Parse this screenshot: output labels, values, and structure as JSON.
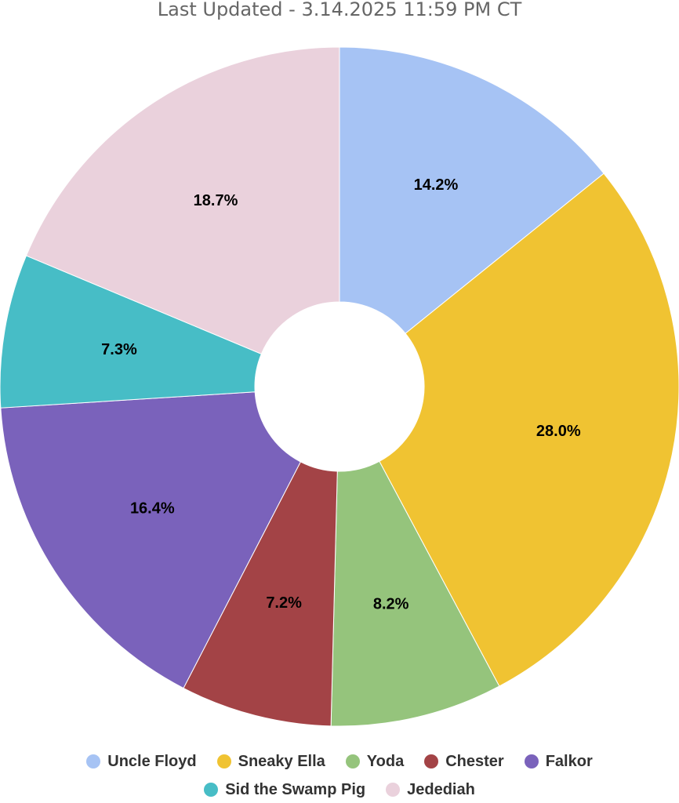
{
  "subtitle": "Last Updated - 3.14.2025 11:59 PM CT",
  "chart_data": {
    "type": "pie",
    "donut": true,
    "title": "",
    "subtitle": "Last Updated - 3.14.2025 11:59 PM CT",
    "slices": [
      {
        "name": "Uncle Floyd",
        "value": 14.2,
        "label": "14.2%",
        "color": "#a6c3f4"
      },
      {
        "name": "Sneaky Ella",
        "value": 28.0,
        "label": "28.0%",
        "color": "#f0c332"
      },
      {
        "name": "Yoda",
        "value": 8.2,
        "label": "8.2%",
        "color": "#95c47c"
      },
      {
        "name": "Chester",
        "value": 7.2,
        "label": "7.2%",
        "color": "#a34346"
      },
      {
        "name": "Falkor",
        "value": 16.4,
        "label": "16.4%",
        "color": "#7a62bb"
      },
      {
        "name": "Sid the Swamp Pig",
        "value": 7.3,
        "label": "7.3%",
        "color": "#47bdc6"
      },
      {
        "name": "Jedediah",
        "value": 18.7,
        "label": "18.7%",
        "color": "#ead1dc"
      }
    ],
    "legend_position": "bottom"
  }
}
